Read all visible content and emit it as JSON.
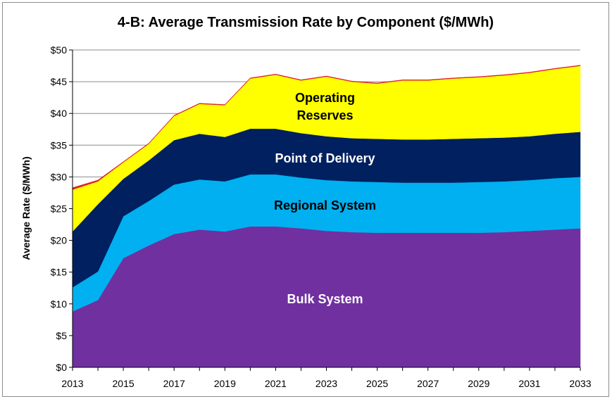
{
  "chart_data": {
    "type": "area",
    "stacked": true,
    "title": "4-B: Average Transmission Rate by Component ($/MWh)",
    "xlabel": "",
    "ylabel": "Average Rate ($/MWh)",
    "ylim": [
      0,
      50
    ],
    "y_ticks": [
      "$0",
      "$5",
      "$10",
      "$15",
      "$20",
      "$25",
      "$30",
      "$35",
      "$40",
      "$45",
      "$50"
    ],
    "y_tick_values": [
      0,
      5,
      10,
      15,
      20,
      25,
      30,
      35,
      40,
      45,
      50
    ],
    "x_ticks": [
      "2013",
      "2015",
      "2017",
      "2019",
      "2021",
      "2023",
      "2025",
      "2027",
      "2029",
      "2031",
      "2033"
    ],
    "x": [
      2013,
      2014,
      2015,
      2016,
      2017,
      2018,
      2019,
      2020,
      2021,
      2022,
      2023,
      2024,
      2025,
      2026,
      2027,
      2028,
      2029,
      2030,
      2031,
      2032,
      2033
    ],
    "grid": "horizontal",
    "legend": "none (labels inside areas)",
    "series": [
      {
        "name": "Bulk System",
        "color": "#7030a0",
        "label_color": "#ffffff",
        "values": [
          8.8,
          10.6,
          17.2,
          19.2,
          21.0,
          21.7,
          21.4,
          22.2,
          22.2,
          21.9,
          21.5,
          21.3,
          21.2,
          21.2,
          21.2,
          21.2,
          21.2,
          21.3,
          21.5,
          21.7,
          21.9
        ]
      },
      {
        "name": "Regional System",
        "color": "#00b0f0",
        "label_color": "#000000",
        "values": [
          3.8,
          4.5,
          6.6,
          7.0,
          7.8,
          7.9,
          7.9,
          8.2,
          8.2,
          8.0,
          8.0,
          8.0,
          8.0,
          7.9,
          7.9,
          7.9,
          8.0,
          8.0,
          8.0,
          8.1,
          8.1
        ]
      },
      {
        "name": "Point of Delivery",
        "color": "#002060",
        "label_color": "#ffffff",
        "values": [
          8.8,
          10.6,
          5.9,
          6.4,
          7.0,
          7.2,
          7.0,
          7.2,
          7.2,
          7.0,
          6.9,
          6.8,
          6.8,
          6.8,
          6.8,
          6.9,
          6.9,
          6.9,
          6.9,
          7.0,
          7.1
        ]
      },
      {
        "name": "Operating Reserves",
        "color": "#ffff00",
        "label_color": "#000000",
        "label_lines": [
          "Operating",
          "Reserves"
        ],
        "values": [
          6.6,
          3.6,
          2.6,
          2.6,
          3.8,
          4.7,
          5.0,
          7.9,
          8.5,
          8.3,
          9.4,
          8.9,
          8.7,
          9.3,
          9.3,
          9.5,
          9.6,
          9.8,
          10.0,
          10.2,
          10.4
        ]
      },
      {
        "name": "",
        "color": "#e0202a",
        "values": [
          0.3,
          0.2,
          0.1,
          0.1,
          0.1,
          0.1,
          0.1,
          0.1,
          0.1,
          0.1,
          0.1,
          0.1,
          0.1,
          0.1,
          0.1,
          0.1,
          0.1,
          0.1,
          0.1,
          0.1,
          0.1
        ]
      }
    ]
  }
}
